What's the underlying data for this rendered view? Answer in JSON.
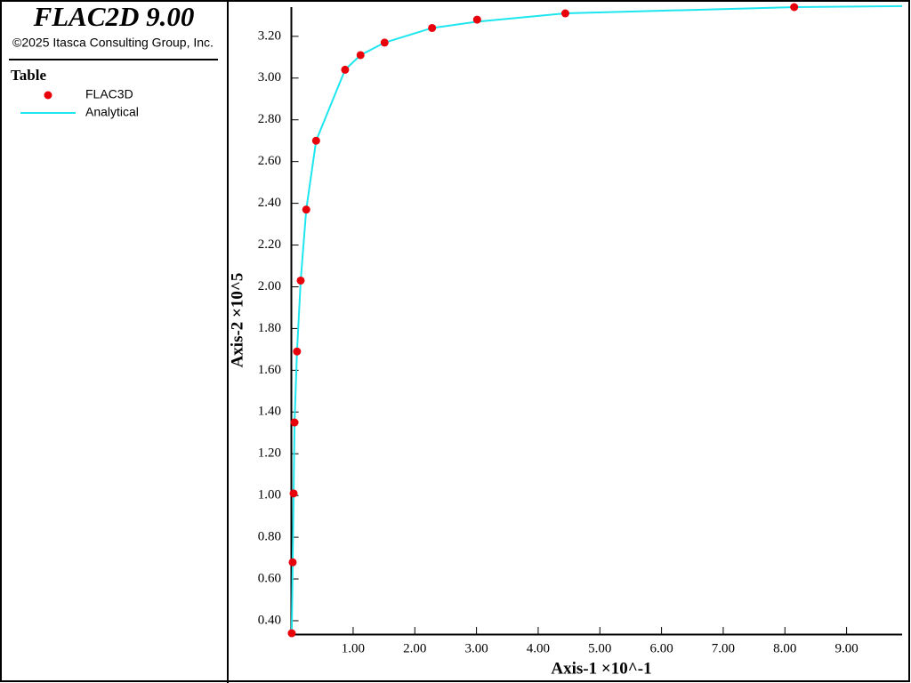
{
  "app": {
    "title": "FLAC2D 9.00",
    "copyright": "©2025 Itasca Consulting Group, Inc."
  },
  "chart_data": {
    "type": "scatter",
    "legend_title": "Table",
    "xlabel": "Axis-1 ×10^-1",
    "ylabel": "Axis-2 ×10^5",
    "xlim": [
      0,
      9.9
    ],
    "ylim": [
      0.336,
      3.34
    ],
    "xticks": [
      {
        "value": 1,
        "label": "1.00"
      },
      {
        "value": 2,
        "label": "2.00"
      },
      {
        "value": 3,
        "label": "3.00"
      },
      {
        "value": 4,
        "label": "4.00"
      },
      {
        "value": 5,
        "label": "5.00"
      },
      {
        "value": 6,
        "label": "6.00"
      },
      {
        "value": 7,
        "label": "7.00"
      },
      {
        "value": 8,
        "label": "8.00"
      },
      {
        "value": 9,
        "label": "9.00"
      }
    ],
    "yticks": [
      {
        "value": 0.4,
        "label": "0.40"
      },
      {
        "value": 0.6,
        "label": "0.60"
      },
      {
        "value": 0.8,
        "label": "0.80"
      },
      {
        "value": 1,
        "label": "1.00"
      },
      {
        "value": 1.2,
        "label": "1.20"
      },
      {
        "value": 1.4,
        "label": "1.40"
      },
      {
        "value": 1.6,
        "label": "1.60"
      },
      {
        "value": 1.8,
        "label": "1.80"
      },
      {
        "value": 2,
        "label": "2.00"
      },
      {
        "value": 2.2,
        "label": "2.20"
      },
      {
        "value": 2.4,
        "label": "2.40"
      },
      {
        "value": 2.6,
        "label": "2.60"
      },
      {
        "value": 2.8,
        "label": "2.80"
      },
      {
        "value": 3,
        "label": "3.00"
      },
      {
        "value": 3.2,
        "label": "3.20"
      }
    ],
    "series": [
      {
        "name": "FLAC3D",
        "style": "marker",
        "color": "#e8000b",
        "x": [
          0.005,
          0.02,
          0.035,
          0.05,
          0.09,
          0.15,
          0.24,
          0.4,
          0.87,
          1.12,
          1.51,
          2.28,
          3.01,
          4.44,
          8.15
        ],
        "y": [
          0.34,
          0.68,
          1.01,
          1.35,
          1.69,
          2.03,
          2.37,
          2.7,
          3.04,
          3.11,
          3.17,
          3.24,
          3.28,
          3.31,
          3.34
        ]
      },
      {
        "name": "Analytical",
        "style": "line",
        "color": "#1ee6ef",
        "x": [
          0.005,
          0.02,
          0.035,
          0.05,
          0.09,
          0.15,
          0.24,
          0.4,
          0.87,
          1.12,
          1.51,
          2.28,
          3.01,
          4.44,
          8.15,
          9.9
        ],
        "y": [
          0.34,
          0.68,
          1.01,
          1.35,
          1.69,
          2.03,
          2.37,
          2.7,
          3.04,
          3.11,
          3.17,
          3.24,
          3.27,
          3.31,
          3.34,
          3.345
        ]
      }
    ]
  }
}
